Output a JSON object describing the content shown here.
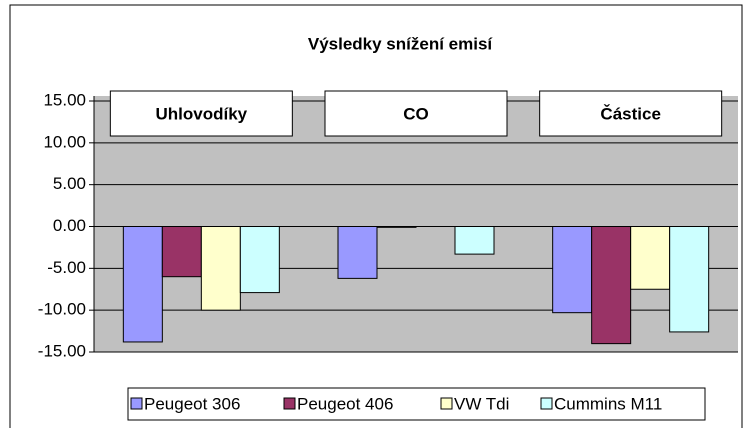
{
  "chart_data": {
    "type": "bar",
    "title": "Výsledky snížení emisí",
    "categories": [
      "Uhlovodíky",
      "CO",
      "Částice"
    ],
    "series": [
      {
        "name": "Peugeot 306",
        "color": "#9999ff",
        "values": [
          -13.8,
          -6.2,
          -10.3
        ]
      },
      {
        "name": "Peugeot 406",
        "color": "#993366",
        "values": [
          -6,
          -0.1,
          -14
        ]
      },
      {
        "name": "VW Tdi",
        "color": "#ffffcc",
        "values": [
          -10,
          0,
          -7.5
        ]
      },
      {
        "name": "Cummins M11",
        "color": "#ccffff",
        "values": [
          -7.9,
          -3.3,
          -12.6
        ]
      }
    ],
    "ylim": [
      -15,
      15
    ],
    "yticks": [
      {
        "value": 15,
        "label": "15.00"
      },
      {
        "value": 10,
        "label": "10.00"
      },
      {
        "value": 5,
        "label": "5.00"
      },
      {
        "value": 0,
        "label": "0.00"
      },
      {
        "value": -5,
        "label": "-5.00"
      },
      {
        "value": -10,
        "label": "-10.00"
      },
      {
        "value": -15,
        "label": "-15.00"
      }
    ],
    "grid": true,
    "legend": "bottom"
  }
}
